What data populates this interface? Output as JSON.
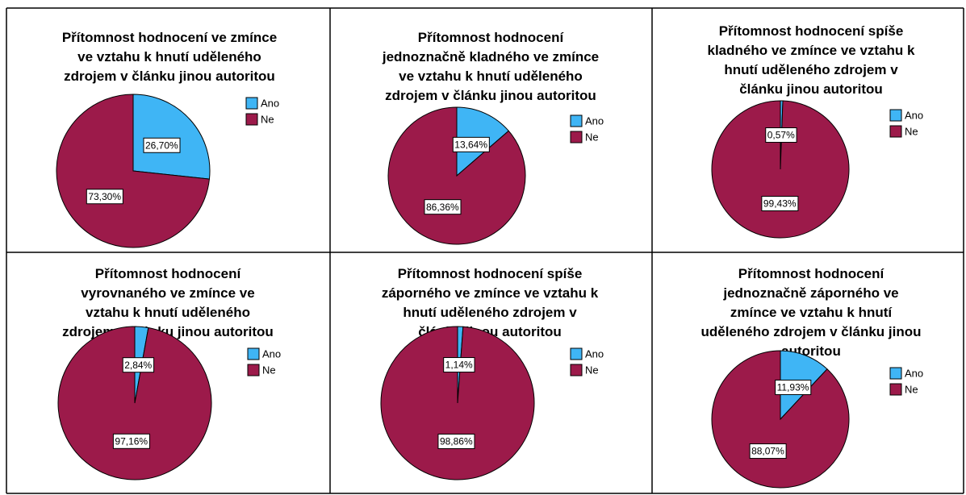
{
  "chart_data": [
    {
      "type": "pie",
      "title": "Přítomnost hodnocení ve zmínce\nve vztahu k hnutí uděleného\nzdrojem v článku jinou autoritou",
      "categories": [
        "Ano",
        "Ne"
      ],
      "values": [
        26.7,
        73.3
      ],
      "value_labels": [
        "26,70%",
        "73,30%"
      ],
      "colors": [
        "#3fb5f5",
        "#9c1a4a"
      ]
    },
    {
      "type": "pie",
      "title": "Přítomnost hodnocení\njednoznačně kladného ve zmínce\nve vztahu k hnutí uděleného\nzdrojem v článku jinou autoritou",
      "categories": [
        "Ano",
        "Ne"
      ],
      "values": [
        13.64,
        86.36
      ],
      "value_labels": [
        "13,64%",
        "86,36%"
      ],
      "colors": [
        "#3fb5f5",
        "#9c1a4a"
      ]
    },
    {
      "type": "pie",
      "title": "Přítomnost hodnocení spíše\nkladného ve zmínce ve vztahu k\nhnutí uděleného zdrojem v\nčlánku jinou autoritou",
      "categories": [
        "Ano",
        "Ne"
      ],
      "values": [
        0.57,
        99.43
      ],
      "value_labels": [
        "0,57%",
        "99,43%"
      ],
      "colors": [
        "#3fb5f5",
        "#9c1a4a"
      ]
    },
    {
      "type": "pie",
      "title": "Přítomnost hodnocení\nvyrovnaného ve zmínce ve\nvztahu k hnutí uděleného\nzdrojem v článku jinou autoritou",
      "categories": [
        "Ano",
        "Ne"
      ],
      "values": [
        2.84,
        97.16
      ],
      "value_labels": [
        "2,84%",
        "97,16%"
      ],
      "colors": [
        "#3fb5f5",
        "#9c1a4a"
      ]
    },
    {
      "type": "pie",
      "title": "Přítomnost hodnocení spíše\nzáporného ve zmínce ve vztahu k\nhnutí uděleného zdrojem v\nčlánku jinou autoritou",
      "categories": [
        "Ano",
        "Ne"
      ],
      "values": [
        1.14,
        98.86
      ],
      "value_labels": [
        "1,14%",
        "98,86%"
      ],
      "colors": [
        "#3fb5f5",
        "#9c1a4a"
      ]
    },
    {
      "type": "pie",
      "title": "Přítomnost hodnocení\njednoznačně záporného ve\nzmínce ve vztahu k hnutí\nuděleného zdrojem v článku jinou\nautoritou",
      "categories": [
        "Ano",
        "Ne"
      ],
      "values": [
        11.93,
        88.07
      ],
      "value_labels": [
        "11,93%",
        "88,07%"
      ],
      "colors": [
        "#3fb5f5",
        "#9c1a4a"
      ]
    }
  ]
}
